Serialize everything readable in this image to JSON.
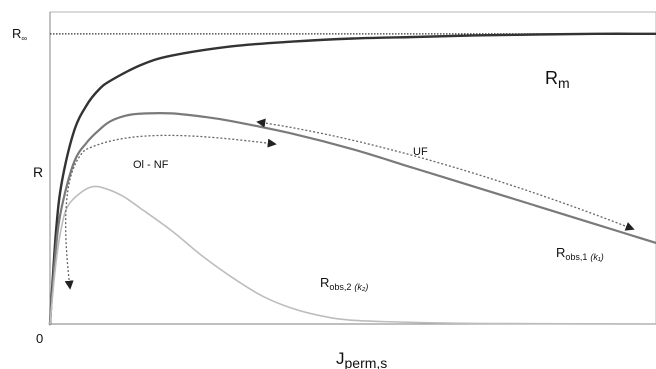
{
  "chart_data": {
    "type": "line",
    "title": "",
    "xlabel": "J",
    "xlabel_sub": "perm,s",
    "ylabel": "R",
    "xlim": [
      0,
      1
    ],
    "ylim": [
      0,
      1
    ],
    "grid": false,
    "y_ticks": [
      {
        "value": 0,
        "label": "0"
      },
      {
        "value": 0.93,
        "label": "R",
        "sub": "∞"
      }
    ],
    "asymptote": {
      "y": 0.93,
      "style": "dotted"
    },
    "series": [
      {
        "name": "R",
        "name_sub": "m",
        "color": "#333333",
        "x": [
          0,
          0.01,
          0.02,
          0.04,
          0.06,
          0.08,
          0.1,
          0.15,
          0.2,
          0.3,
          0.4,
          0.5,
          0.6,
          0.7,
          0.8,
          0.9,
          1.0
        ],
        "y": [
          0,
          0.3,
          0.46,
          0.62,
          0.7,
          0.75,
          0.78,
          0.83,
          0.86,
          0.89,
          0.905,
          0.915,
          0.92,
          0.925,
          0.928,
          0.93,
          0.93
        ]
      },
      {
        "name": "R",
        "name_sub": "obs,1",
        "name_note": "(k₁)",
        "color": "#7a7a7a",
        "x": [
          0,
          0.01,
          0.02,
          0.04,
          0.06,
          0.08,
          0.1,
          0.13,
          0.16,
          0.2,
          0.25,
          0.3,
          0.4,
          0.5,
          0.6,
          0.7,
          0.8,
          0.9,
          1.0
        ],
        "y": [
          0,
          0.25,
          0.38,
          0.52,
          0.58,
          0.62,
          0.65,
          0.67,
          0.675,
          0.675,
          0.665,
          0.65,
          0.61,
          0.56,
          0.5,
          0.44,
          0.38,
          0.32,
          0.26
        ]
      },
      {
        "name": "R",
        "name_sub": "obs,2",
        "name_note": "(k₂)",
        "color": "#bdbdbd",
        "x": [
          0,
          0.01,
          0.02,
          0.03,
          0.05,
          0.07,
          0.09,
          0.12,
          0.15,
          0.2,
          0.25,
          0.3,
          0.35,
          0.4,
          0.45,
          0.5,
          0.6,
          0.7,
          0.8,
          1.0
        ],
        "y": [
          0,
          0.2,
          0.32,
          0.38,
          0.42,
          0.44,
          0.435,
          0.41,
          0.37,
          0.3,
          0.22,
          0.15,
          0.09,
          0.05,
          0.025,
          0.012,
          0.005,
          0.002,
          0.001,
          0
        ]
      }
    ],
    "annotations": [
      {
        "text": "Ol - NF",
        "x": 0.08,
        "y": 0.56
      },
      {
        "text": "UF",
        "x": 0.6,
        "y": 0.6
      }
    ]
  }
}
